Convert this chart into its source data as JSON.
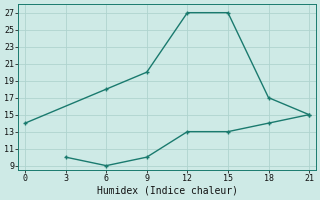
{
  "xlabel": "Humidex (Indice chaleur)",
  "x_upper": [
    0,
    6,
    9,
    12,
    15,
    18,
    21
  ],
  "y_upper": [
    14,
    18,
    20,
    27,
    27,
    17,
    15
  ],
  "x_lower": [
    3,
    6,
    9,
    12,
    15,
    18,
    21
  ],
  "y_lower": [
    10,
    9,
    10,
    13,
    13,
    14,
    15
  ],
  "line_color": "#1a7a6e",
  "bg_color": "#ceeae6",
  "grid_color": "#afd4cf",
  "xlim": [
    -0.5,
    21.5
  ],
  "ylim": [
    8.5,
    28
  ],
  "xticks": [
    0,
    3,
    6,
    9,
    12,
    15,
    18,
    21
  ],
  "yticks": [
    9,
    11,
    13,
    15,
    17,
    19,
    21,
    23,
    25,
    27
  ],
  "markersize": 3.5,
  "linewidth": 1.0
}
